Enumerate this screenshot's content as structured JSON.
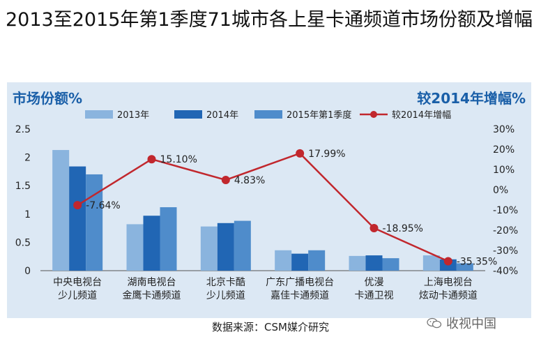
{
  "title": "2013至2015年第1季度71城市各上星卡通频道市场份额及增幅",
  "source": "数据来源：CSM媒介研究",
  "watermark": "收视中国",
  "chart_data": {
    "type": "bar",
    "left_axis_title": "市场份额%",
    "right_axis_title": "较2014年增幅%",
    "categories": [
      [
        "中央电视台",
        "少儿频道"
      ],
      [
        "湖南电视台",
        "金鹰卡通频道"
      ],
      [
        "北京卡酷",
        "少儿频道"
      ],
      [
        "广东广播电视台",
        "嘉佳卡通频道"
      ],
      [
        "优漫",
        "卡通卫视"
      ],
      [
        "上海电视台",
        "炫动卡通频道"
      ]
    ],
    "series": [
      {
        "name": "2013年",
        "color": "#8ab4de",
        "values": [
          2.13,
          0.82,
          0.78,
          0.36,
          0.26,
          0.27
        ]
      },
      {
        "name": "2014年",
        "color": "#2166b4",
        "values": [
          1.84,
          0.97,
          0.84,
          0.3,
          0.27,
          0.2
        ]
      },
      {
        "name": "2015年第1季度",
        "color": "#4f8ccb",
        "values": [
          1.7,
          1.12,
          0.88,
          0.36,
          0.22,
          0.13
        ]
      }
    ],
    "line": {
      "name": "较2014年增幅",
      "color": "#c1272d",
      "values": [
        -7.64,
        15.1,
        4.83,
        17.99,
        -18.95,
        -35.35
      ],
      "labels": [
        "-7.64%",
        "15.10%",
        "4.83%",
        "17.99%",
        "-18.95%",
        "-35.35%"
      ]
    },
    "y_left": {
      "min": 0,
      "max": 2.5,
      "ticks": [
        "0",
        "0.5",
        "1",
        "1.5",
        "2",
        "2.5"
      ]
    },
    "y_right": {
      "min": -40,
      "max": 30,
      "ticks": [
        "30%",
        "20%",
        "10%",
        "0%",
        "-10%",
        "-20%",
        "-30%",
        "-40%"
      ]
    },
    "legend": "top"
  }
}
